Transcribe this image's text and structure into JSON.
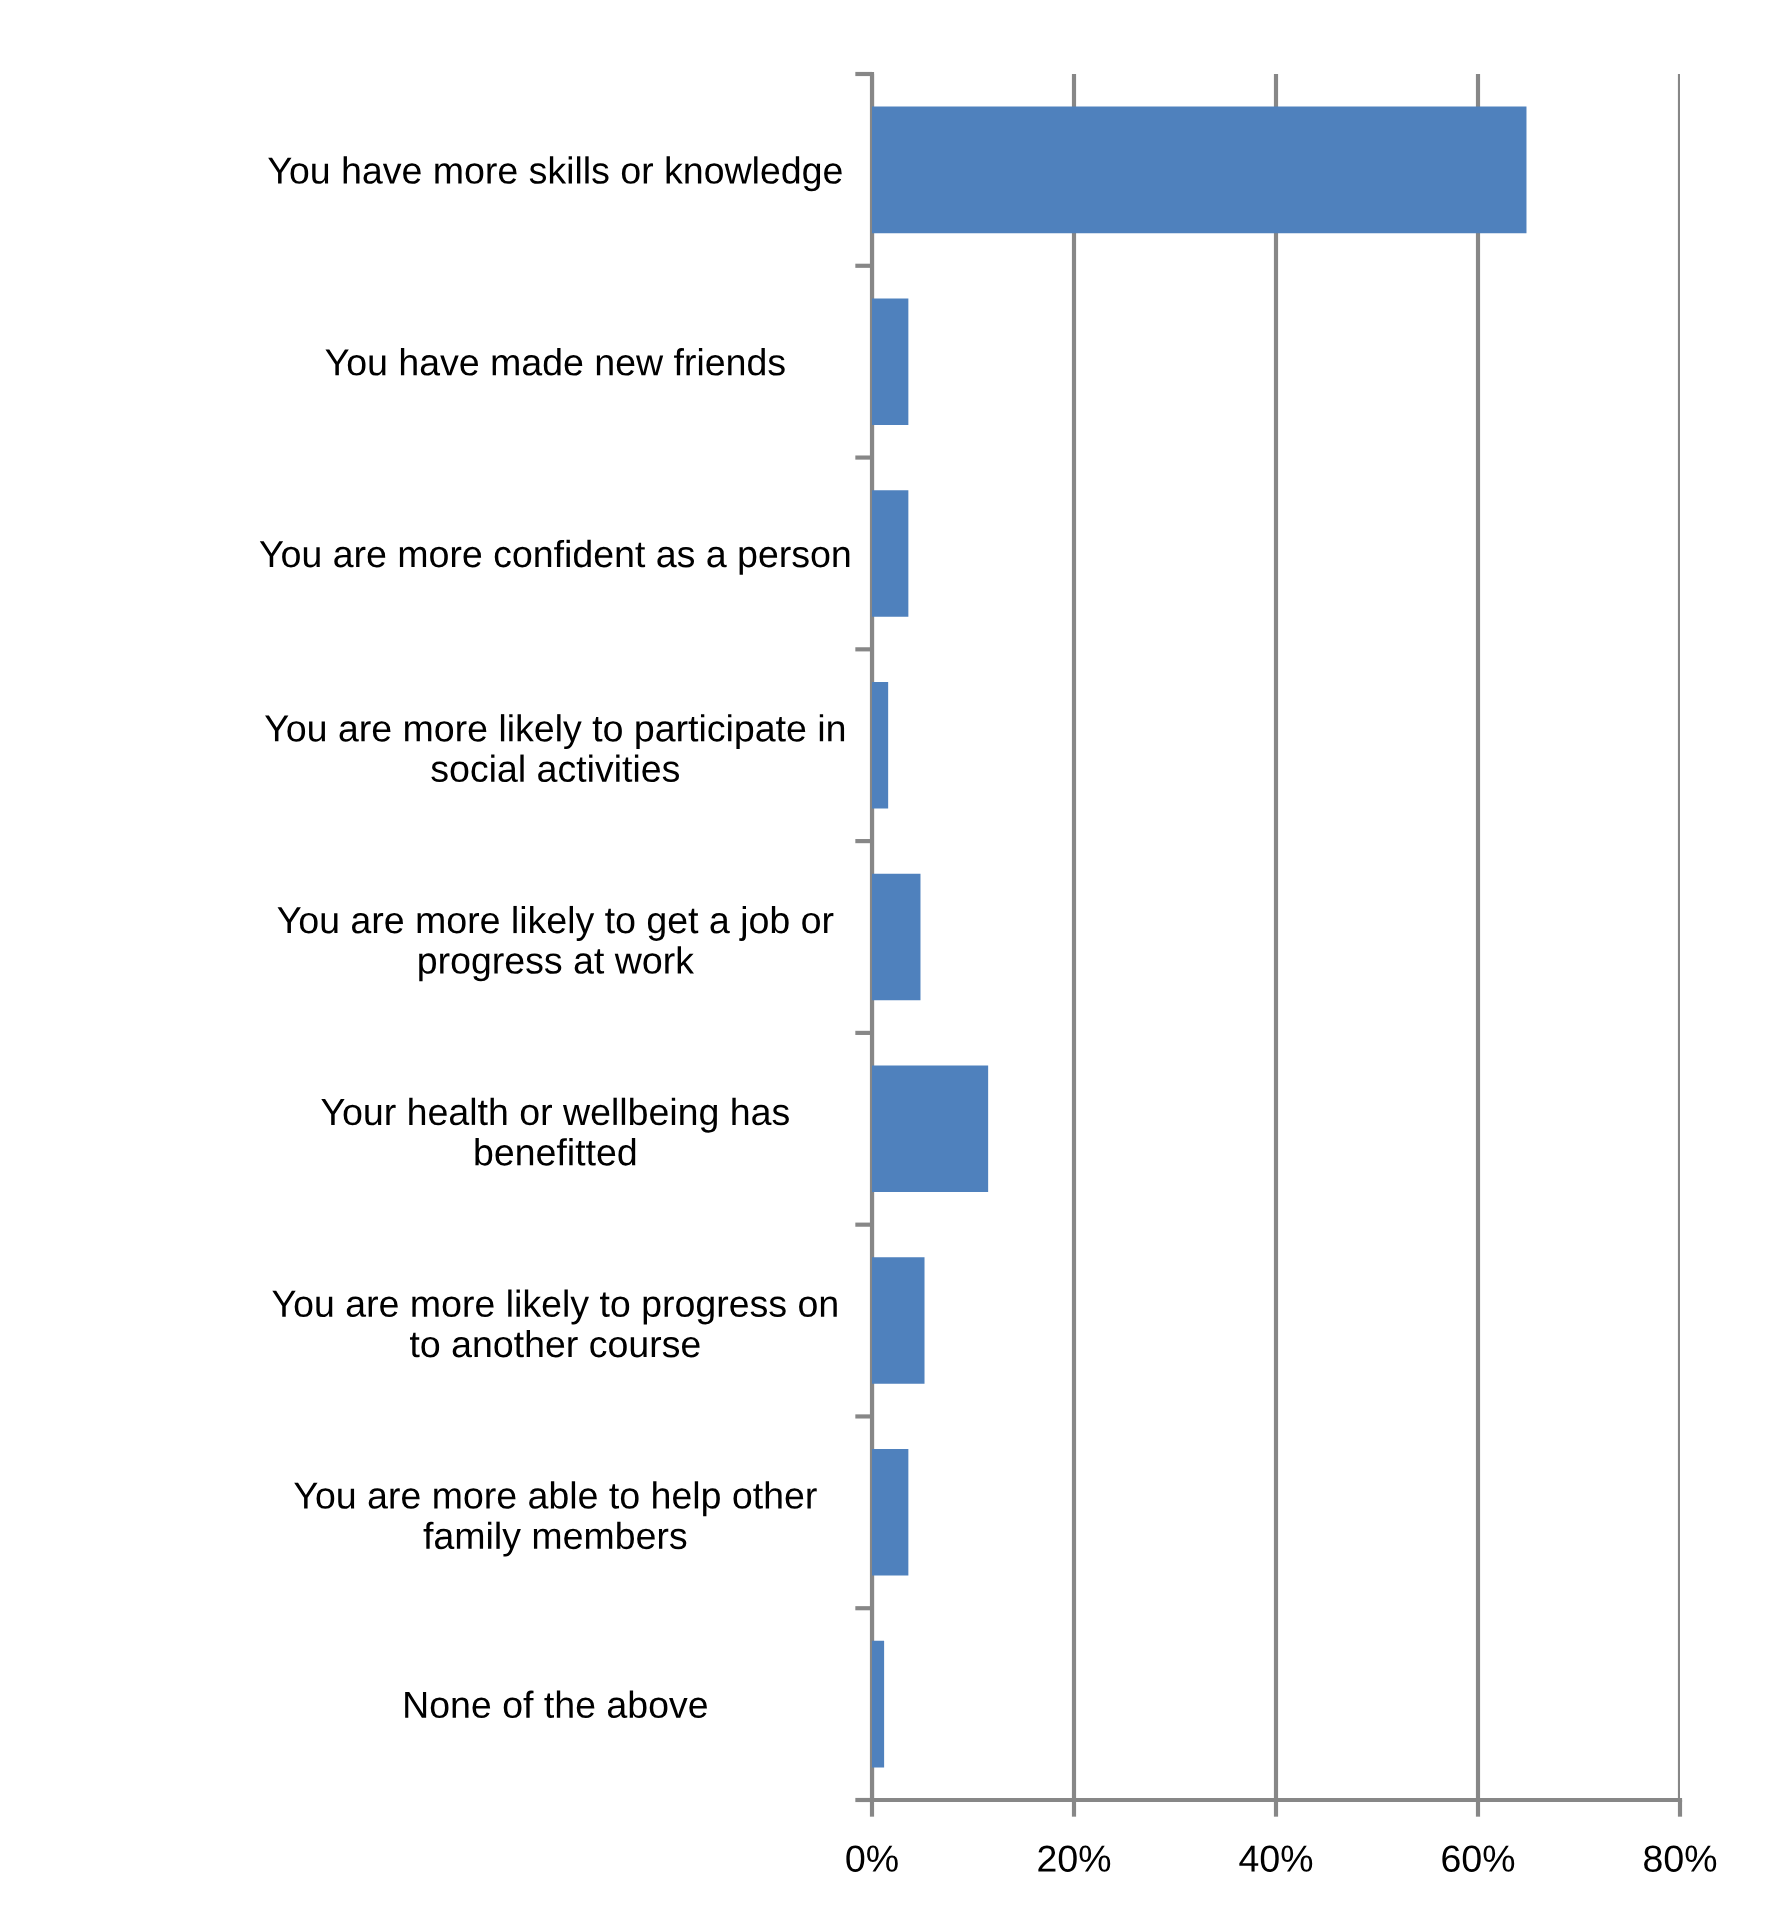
{
  "chart_data": {
    "type": "bar",
    "orientation": "horizontal",
    "categories": [
      "You have more skills or knowledge",
      "You have made new friends",
      "You are more confident as a person",
      "You are more likely to participate in\nsocial activities",
      "You are more likely to get a job or\nprogress at work",
      "Your health or wellbeing has\nbenefitted",
      "You are more likely to progress on\nto another course",
      "You are more able to help other\nfamily members",
      "None of the above"
    ],
    "values": [
      64.8,
      3.6,
      3.6,
      1.6,
      4.8,
      11.5,
      5.2,
      3.6,
      1.2
    ],
    "color": "#4f81bd",
    "xlim": [
      0,
      80
    ],
    "xticks": [
      {
        "value": 0,
        "label": "0%"
      },
      {
        "value": 20,
        "label": "20%"
      },
      {
        "value": 40,
        "label": "40%"
      },
      {
        "value": 60,
        "label": "60%"
      },
      {
        "value": 80,
        "label": "80%"
      }
    ],
    "grid": "x"
  }
}
